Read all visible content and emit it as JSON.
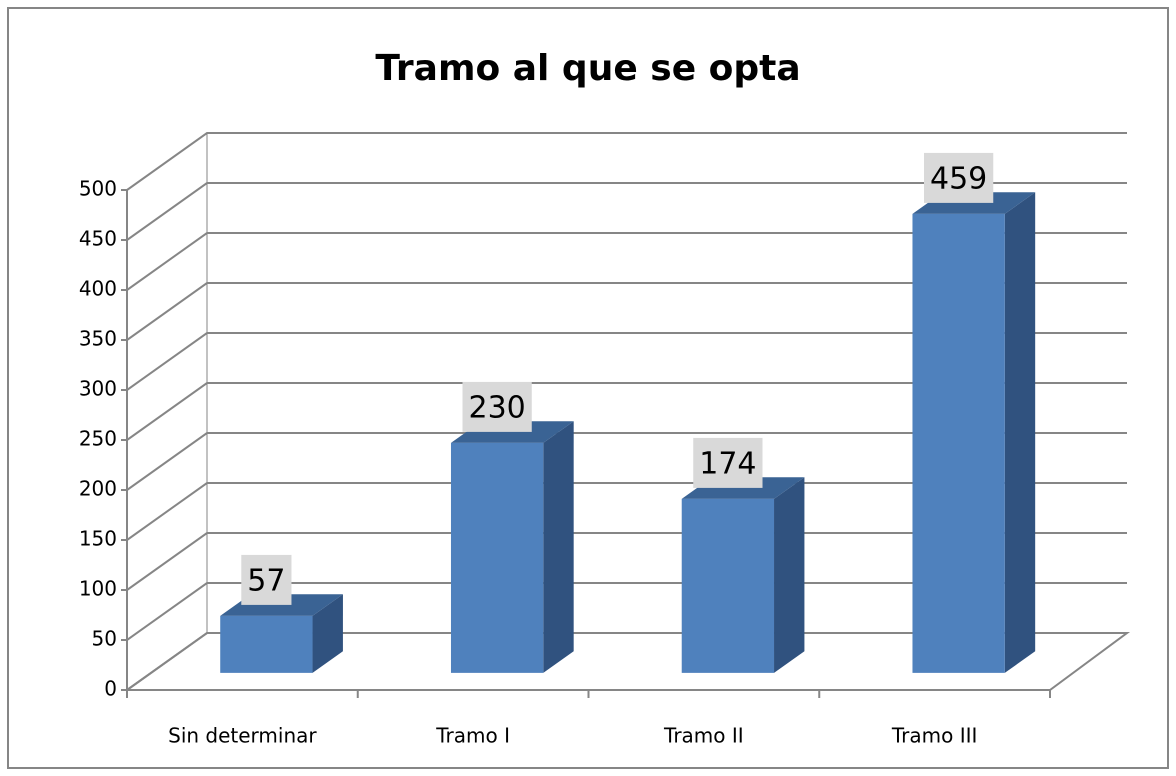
{
  "chart_data": {
    "type": "bar3d",
    "title": "Tramo al que se opta",
    "categories": [
      "Sin determinar",
      "Tramo I",
      "Tramo II",
      "Tramo III"
    ],
    "values": [
      57,
      230,
      174,
      459
    ],
    "color": "#4f81bd",
    "ylim": [
      0,
      500
    ],
    "yticks": [
      0,
      50,
      100,
      150,
      200,
      250,
      300,
      350,
      400,
      450,
      500
    ],
    "grid": true
  }
}
